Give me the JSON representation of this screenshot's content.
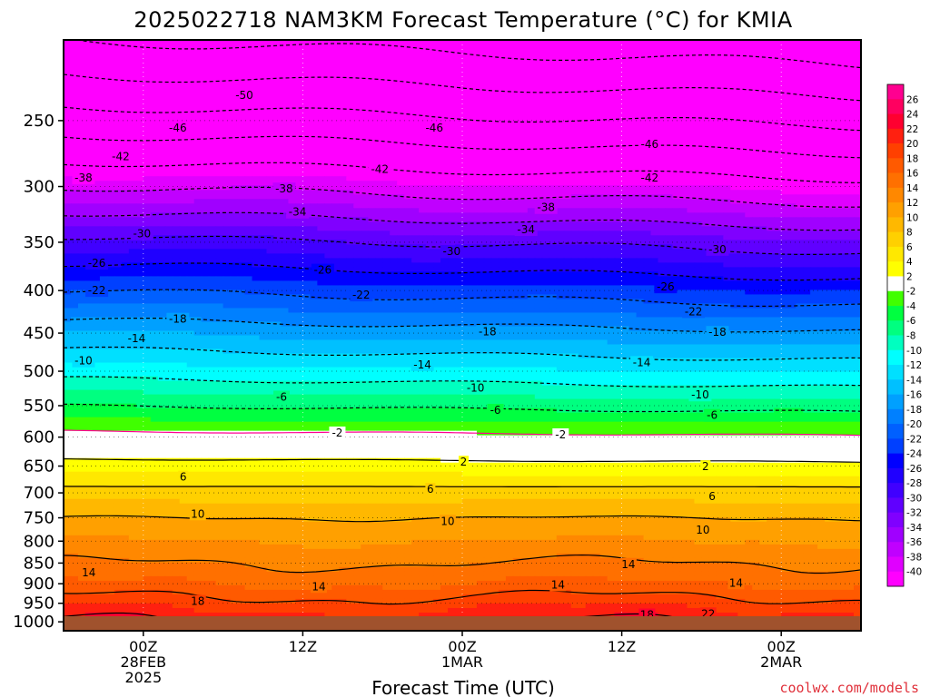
{
  "chart_data": {
    "type": "heatmap",
    "title": "2025022718 NAM3KM Forecast Temperature (°C) for KMIA",
    "xlabel": "Forecast Time (UTC)",
    "ylabel": "",
    "credit": "coolwx.com/models",
    "y_axis": {
      "scale": "pressure (hPa), inverted",
      "range": [
        1025,
        200
      ],
      "ticks": [
        250,
        300,
        350,
        400,
        450,
        500,
        550,
        600,
        650,
        700,
        750,
        800,
        850,
        900,
        950,
        1000
      ]
    },
    "x_axis": {
      "range_hours": [
        0,
        60
      ],
      "ticks": [
        {
          "hour": 6,
          "lines": [
            "00Z",
            "28FEB",
            "2025"
          ]
        },
        {
          "hour": 18,
          "lines": [
            "12Z"
          ]
        },
        {
          "hour": 30,
          "lines": [
            "00Z",
            "1MAR"
          ]
        },
        {
          "hour": 42,
          "lines": [
            "12Z"
          ]
        },
        {
          "hour": 54,
          "lines": [
            "00Z",
            "2MAR"
          ]
        }
      ]
    },
    "grid": true,
    "colorbar": {
      "levels": [
        26,
        24,
        22,
        20,
        18,
        16,
        14,
        12,
        10,
        8,
        6,
        4,
        2,
        -2,
        -4,
        -6,
        -8,
        -10,
        -12,
        -14,
        -16,
        -18,
        -20,
        -22,
        -24,
        -26,
        -28,
        -30,
        -32,
        -34,
        -36,
        -38,
        -40
      ],
      "colors": [
        "#ff0090",
        "#ff0060",
        "#ff0030",
        "#ff2010",
        "#ff4000",
        "#ff5a00",
        "#ff7000",
        "#ff8800",
        "#ffa000",
        "#ffb800",
        "#ffd000",
        "#ffe800",
        "#ffff00",
        "#ffffff",
        "#40ff00",
        "#00ff40",
        "#00ff80",
        "#00ffc0",
        "#00ffff",
        "#00e0ff",
        "#00c0ff",
        "#00a0ff",
        "#0080ff",
        "#0060ff",
        "#0040ff",
        "#0000ff",
        "#2000ff",
        "#4000ff",
        "#6000ff",
        "#8000ff",
        "#a000ff",
        "#c000ff",
        "#e000ff",
        "#ff00ff"
      ]
    },
    "temperature_profile": [
      {
        "p": 200,
        "t": -58
      },
      {
        "p": 250,
        "t": -48
      },
      {
        "p": 300,
        "t": -38
      },
      {
        "p": 350,
        "t": -29
      },
      {
        "p": 400,
        "t": -22
      },
      {
        "p": 450,
        "t": -16
      },
      {
        "p": 500,
        "t": -11
      },
      {
        "p": 550,
        "t": -6
      },
      {
        "p": 600,
        "t": -1
      },
      {
        "p": 650,
        "t": 3
      },
      {
        "p": 700,
        "t": 7
      },
      {
        "p": 750,
        "t": 10
      },
      {
        "p": 800,
        "t": 12
      },
      {
        "p": 850,
        "t": 14
      },
      {
        "p": 900,
        "t": 16
      },
      {
        "p": 950,
        "t": 19
      },
      {
        "p": 1000,
        "t": 22
      },
      {
        "p": 1025,
        "t": 23
      }
    ],
    "contour_labels": [
      {
        "v": -50,
        "h": 13.6,
        "p": 233
      },
      {
        "v": -46,
        "h": 8.6,
        "p": 255
      },
      {
        "v": -46,
        "h": 27.9,
        "p": 255
      },
      {
        "v": -46,
        "h": 44.1,
        "p": 267
      },
      {
        "v": -42,
        "h": 4.3,
        "p": 276
      },
      {
        "v": -42,
        "h": 23.8,
        "p": 286
      },
      {
        "v": -42,
        "h": 44.1,
        "p": 293
      },
      {
        "v": -38,
        "h": 1.5,
        "p": 293
      },
      {
        "v": -38,
        "h": 16.6,
        "p": 302
      },
      {
        "v": -38,
        "h": 36.3,
        "p": 318
      },
      {
        "v": -34,
        "h": 17.6,
        "p": 322
      },
      {
        "v": -34,
        "h": 34.8,
        "p": 338
      },
      {
        "v": -30,
        "h": 5.9,
        "p": 342
      },
      {
        "v": -30,
        "h": 29.2,
        "p": 359
      },
      {
        "v": -30,
        "h": 49.2,
        "p": 357
      },
      {
        "v": -26,
        "h": 2.5,
        "p": 371
      },
      {
        "v": -26,
        "h": 19.5,
        "p": 378
      },
      {
        "v": -26,
        "h": 45.3,
        "p": 396
      },
      {
        "v": -22,
        "h": 2.5,
        "p": 400
      },
      {
        "v": -22,
        "h": 22.4,
        "p": 405
      },
      {
        "v": -22,
        "h": 47.4,
        "p": 424
      },
      {
        "v": -18,
        "h": 8.6,
        "p": 433
      },
      {
        "v": -18,
        "h": 31.9,
        "p": 448
      },
      {
        "v": -18,
        "h": 49.2,
        "p": 449
      },
      {
        "v": -14,
        "h": 5.5,
        "p": 457
      },
      {
        "v": -14,
        "h": 27.0,
        "p": 491
      },
      {
        "v": -14,
        "h": 43.5,
        "p": 488
      },
      {
        "v": -10,
        "h": 1.5,
        "p": 486
      },
      {
        "v": -10,
        "h": 31.0,
        "p": 524
      },
      {
        "v": -10,
        "h": 47.9,
        "p": 534
      },
      {
        "v": -6,
        "h": 16.4,
        "p": 537
      },
      {
        "v": -6,
        "h": 32.5,
        "p": 557
      },
      {
        "v": -6,
        "h": 48.8,
        "p": 565
      },
      {
        "v": -2,
        "h": 20.6,
        "p": 593
      },
      {
        "v": -2,
        "h": 37.4,
        "p": 596
      },
      {
        "v": 2,
        "h": 30.1,
        "p": 643
      },
      {
        "v": 2,
        "h": 48.3,
        "p": 651
      },
      {
        "v": 6,
        "h": 9.0,
        "p": 670
      },
      {
        "v": 6,
        "h": 27.6,
        "p": 693
      },
      {
        "v": 6,
        "h": 48.8,
        "p": 707
      },
      {
        "v": 10,
        "h": 10.1,
        "p": 742
      },
      {
        "v": 10,
        "h": 28.9,
        "p": 757
      },
      {
        "v": 10,
        "h": 48.1,
        "p": 776
      },
      {
        "v": 14,
        "h": 1.9,
        "p": 873
      },
      {
        "v": 14,
        "h": 19.2,
        "p": 907
      },
      {
        "v": 14,
        "h": 37.2,
        "p": 903
      },
      {
        "v": 14,
        "h": 42.5,
        "p": 853
      },
      {
        "v": 14,
        "h": 50.6,
        "p": 898
      },
      {
        "v": 18,
        "h": 10.1,
        "p": 945
      },
      {
        "v": 18,
        "h": 43.9,
        "p": 981
      },
      {
        "v": 22,
        "h": 48.5,
        "p": 978
      }
    ]
  }
}
